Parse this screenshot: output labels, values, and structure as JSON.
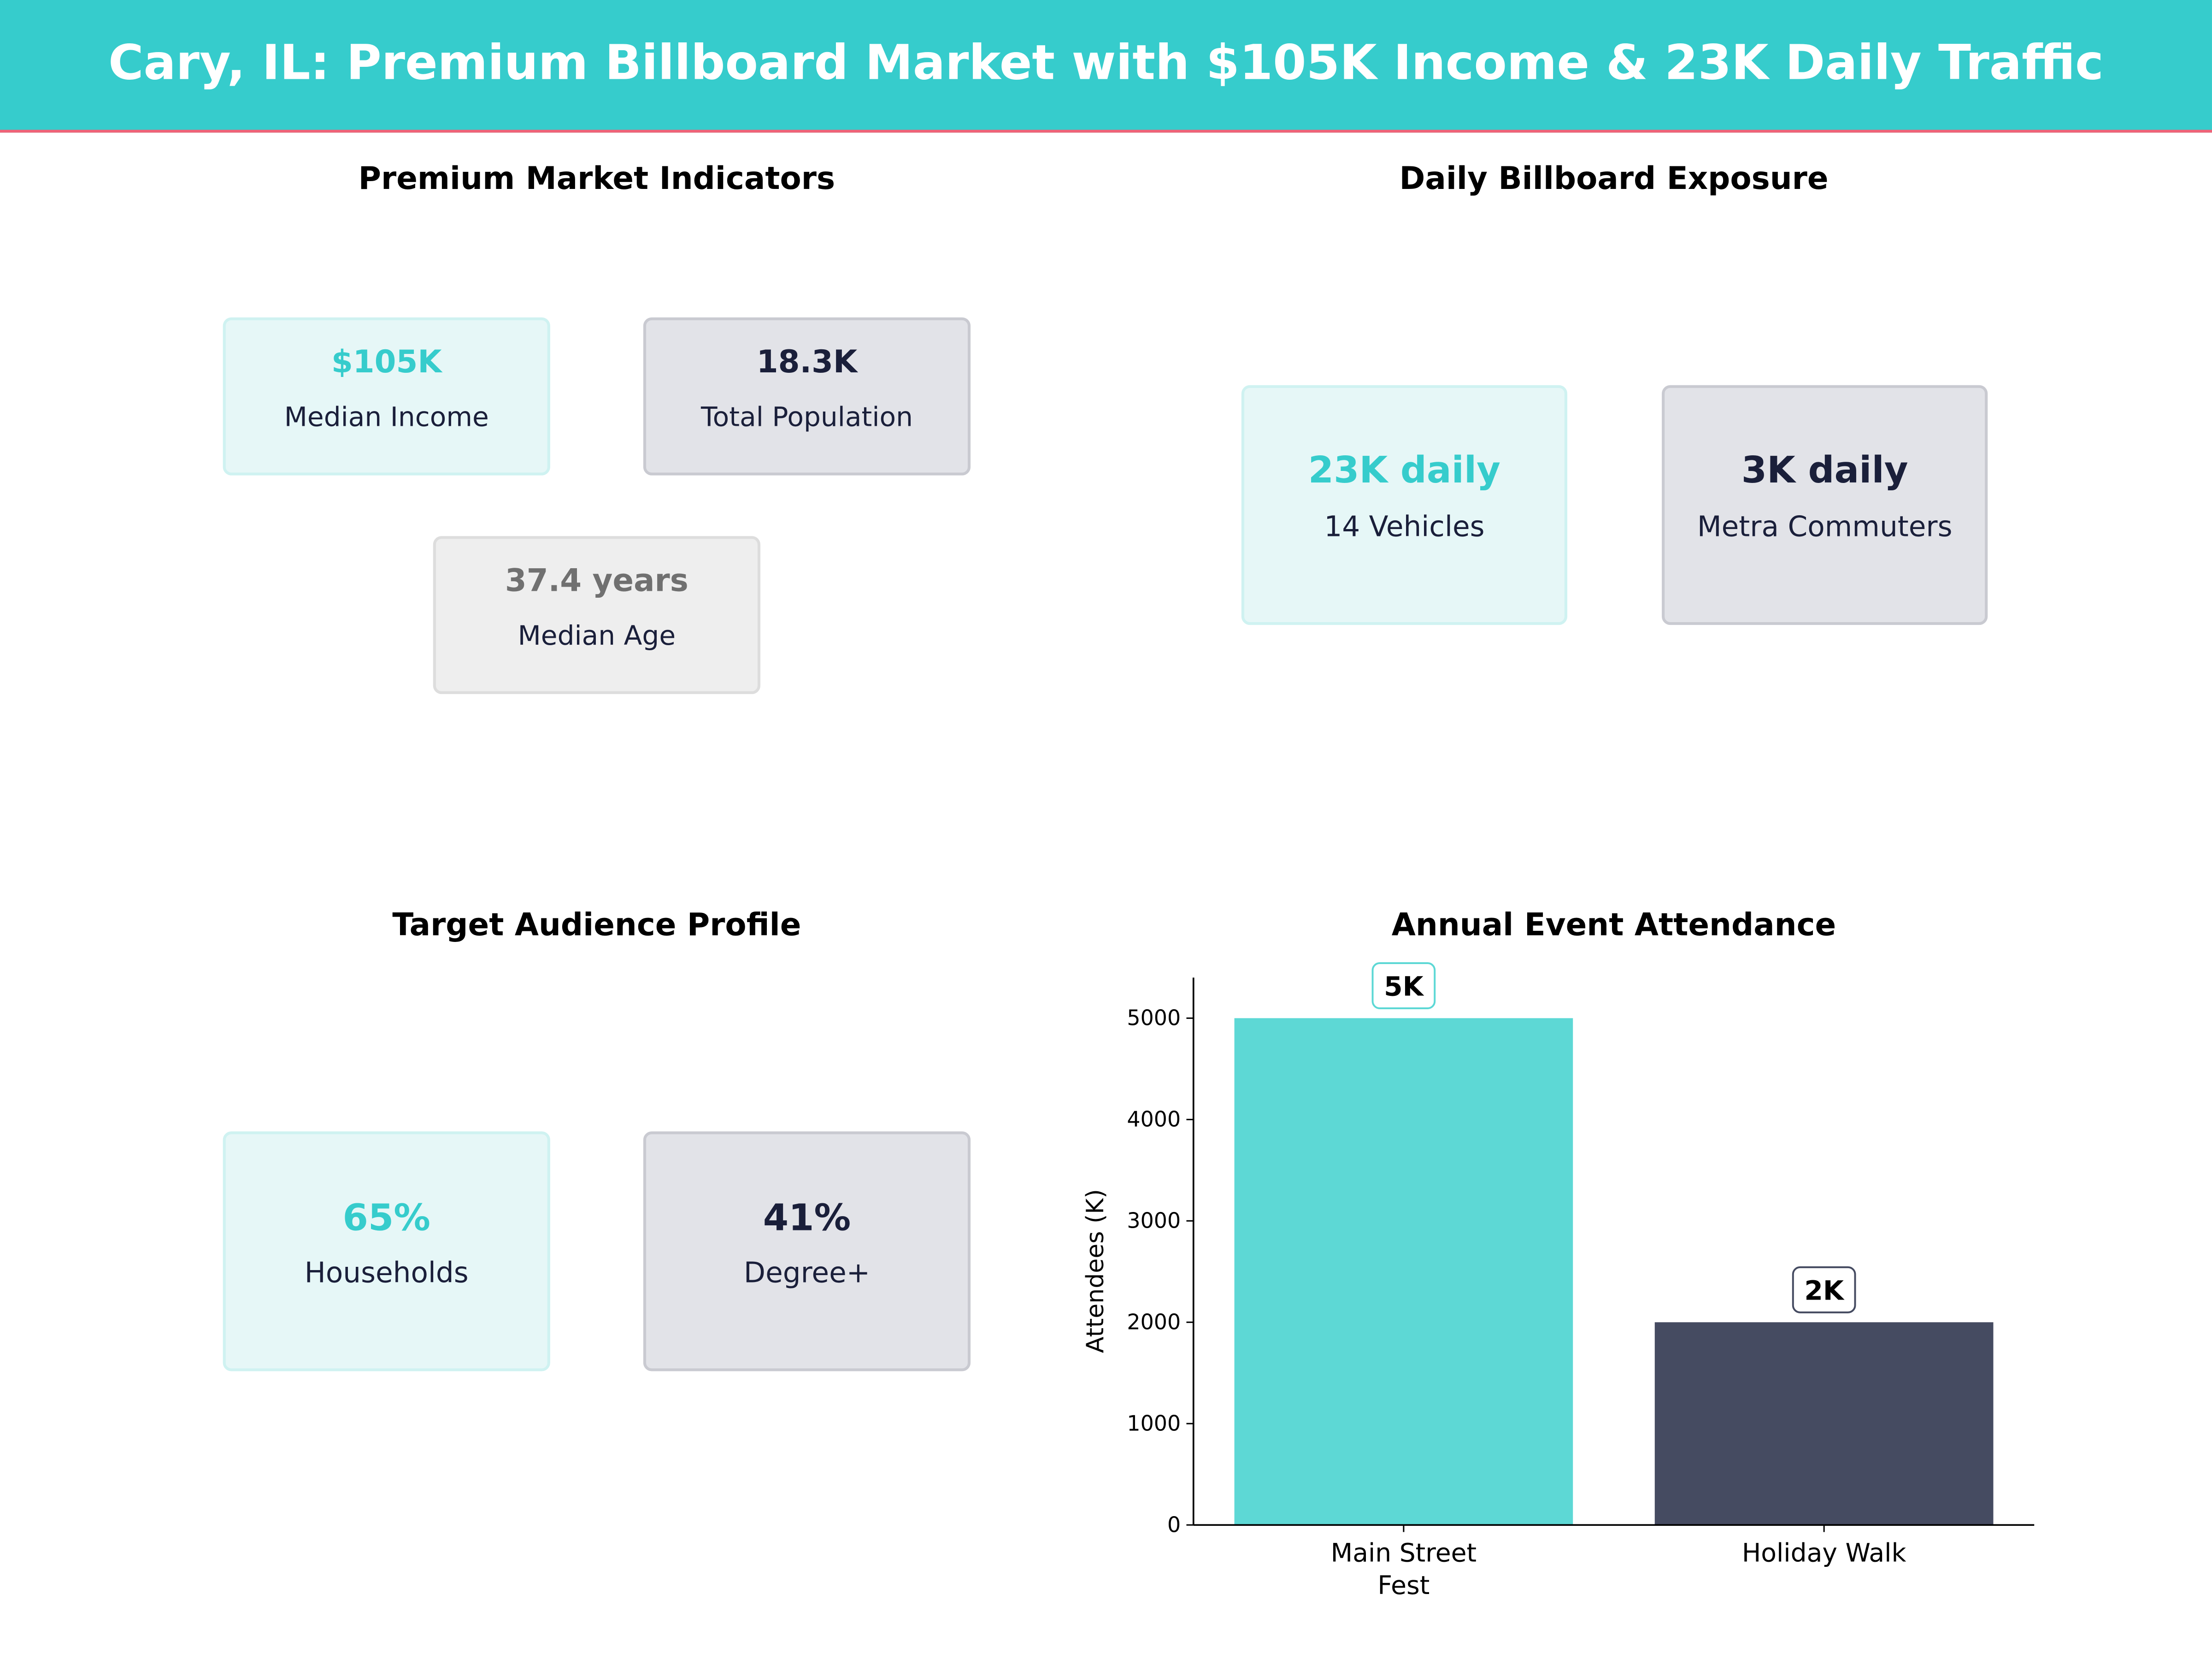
{
  "header": {
    "title": "Cary, IL: Premium Billboard Market with $105K Income & 23K Daily Traffic"
  },
  "colors": {
    "accent": "#36CCCC",
    "highlight": "#F06277",
    "dark": "#1A1F3A",
    "bar1": "#5DD8D5",
    "bar2": "#454B61",
    "muted": "#707070"
  },
  "market": {
    "title": "Premium Market Indicators",
    "cards": [
      {
        "value": "$105K",
        "label": "Median Income"
      },
      {
        "value": "18.3K",
        "label": "Total Population"
      },
      {
        "value": "37.4 years",
        "label": "Median Age"
      }
    ]
  },
  "exposure": {
    "title": "Daily Billboard Exposure",
    "cards": [
      {
        "value": "23K daily",
        "label": "14 Vehicles"
      },
      {
        "value": "3K daily",
        "label": "Metra Commuters"
      }
    ]
  },
  "audience": {
    "title": "Target Audience Profile",
    "cards": [
      {
        "value": "65%",
        "label": "Households"
      },
      {
        "value": "41%",
        "label": "Degree+"
      }
    ]
  },
  "chart_data": {
    "type": "bar",
    "title": "Annual Event Attendance",
    "categories": [
      "Main Street\nFest",
      "Holiday Walk"
    ],
    "category_lines": [
      [
        "Main Street",
        "Fest"
      ],
      [
        "Holiday Walk"
      ]
    ],
    "values": [
      5000,
      2000
    ],
    "data_labels": [
      "5K",
      "2K"
    ],
    "xlabel": "",
    "ylabel": "Attendees (K)",
    "ylim": [
      0,
      5400
    ],
    "yticks": [
      0,
      1000,
      2000,
      3000,
      4000,
      5000
    ],
    "grid": false
  }
}
